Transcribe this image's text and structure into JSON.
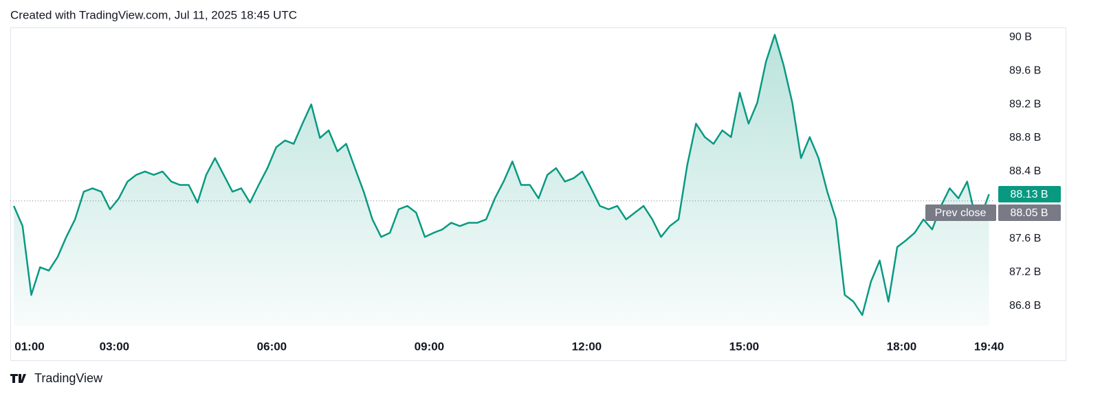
{
  "chart_data": {
    "type": "area",
    "title": "Created with TradingView.com, Jul 11, 2025 18:45 UTC",
    "footer": "TradingView",
    "color": "#089981",
    "x": [
      "01:05",
      "01:15",
      "01:25",
      "01:35",
      "01:45",
      "01:55",
      "02:05",
      "02:15",
      "02:25",
      "02:35",
      "02:45",
      "02:55",
      "03:05",
      "03:15",
      "03:25",
      "03:35",
      "03:45",
      "03:55",
      "04:05",
      "04:15",
      "04:25",
      "04:35",
      "04:45",
      "04:55",
      "05:05",
      "05:15",
      "05:25",
      "05:35",
      "05:45",
      "05:55",
      "06:05",
      "06:15",
      "06:25",
      "06:35",
      "06:45",
      "06:55",
      "07:05",
      "07:15",
      "07:25",
      "07:35",
      "07:45",
      "07:55",
      "08:05",
      "08:15",
      "08:25",
      "08:35",
      "08:45",
      "08:55",
      "09:05",
      "09:15",
      "09:25",
      "09:35",
      "09:45",
      "09:55",
      "10:05",
      "10:15",
      "10:25",
      "10:35",
      "10:45",
      "10:55",
      "11:05",
      "11:15",
      "11:25",
      "11:35",
      "11:45",
      "11:55",
      "12:05",
      "12:15",
      "12:25",
      "12:35",
      "12:45",
      "12:55",
      "13:05",
      "13:15",
      "13:25",
      "13:35",
      "13:45",
      "13:55",
      "14:05",
      "14:15",
      "14:25",
      "14:35",
      "14:45",
      "14:55",
      "15:05",
      "15:15",
      "15:25",
      "15:35",
      "15:45",
      "15:55",
      "16:05",
      "16:15",
      "16:25",
      "16:35",
      "16:45",
      "16:55",
      "17:05",
      "17:15",
      "17:25",
      "17:35",
      "17:45",
      "17:55",
      "18:05",
      "18:15",
      "18:25",
      "18:35",
      "18:45",
      "18:55",
      "19:05",
      "19:15",
      "19:25",
      "19:35",
      "19:40"
    ],
    "values": [
      87.99,
      87.75,
      86.93,
      87.26,
      87.22,
      87.38,
      87.62,
      87.83,
      88.16,
      88.2,
      88.16,
      87.95,
      88.08,
      88.28,
      88.36,
      88.4,
      88.36,
      88.4,
      88.28,
      88.24,
      88.24,
      88.03,
      88.36,
      88.56,
      88.36,
      88.16,
      88.2,
      88.03,
      88.24,
      88.44,
      88.69,
      88.77,
      88.73,
      88.97,
      89.2,
      88.8,
      88.89,
      88.64,
      88.73,
      88.44,
      88.16,
      87.83,
      87.62,
      87.67,
      87.95,
      87.99,
      87.91,
      87.62,
      87.67,
      87.71,
      87.79,
      87.75,
      87.79,
      87.79,
      87.83,
      88.08,
      88.28,
      88.52,
      88.24,
      88.24,
      88.08,
      88.36,
      88.44,
      88.28,
      88.32,
      88.4,
      88.2,
      87.99,
      87.95,
      87.99,
      87.83,
      87.91,
      87.99,
      87.83,
      87.62,
      87.75,
      87.83,
      88.48,
      88.97,
      88.81,
      88.73,
      88.89,
      88.81,
      89.34,
      88.97,
      89.22,
      89.71,
      90.03,
      89.67,
      89.22,
      88.56,
      88.81,
      88.56,
      88.16,
      87.83,
      86.93,
      86.85,
      86.69,
      87.09,
      87.34,
      86.85,
      87.5,
      87.58,
      87.67,
      87.83,
      87.71,
      87.99,
      88.2,
      88.08,
      88.28,
      87.83,
      87.99,
      88.13
    ],
    "xlim": [
      "01:01",
      "19:45"
    ],
    "xticks": [
      "01:00",
      "03:00",
      "06:00",
      "09:00",
      "12:00",
      "15:00",
      "18:00",
      "19:40"
    ],
    "ylim": [
      86.56,
      90.1
    ],
    "yticks": [
      {
        "value": 86.8,
        "label": "86.8 B"
      },
      {
        "value": 87.2,
        "label": "87.2 B"
      },
      {
        "value": 87.6,
        "label": "87.6 B"
      },
      {
        "value": 88.4,
        "label": "88.4 B"
      },
      {
        "value": 88.8,
        "label": "88.8 B"
      },
      {
        "value": 89.2,
        "label": "89.2 B"
      },
      {
        "value": 89.6,
        "label": "89.6 B"
      },
      {
        "value": 90,
        "label": "90 B"
      }
    ],
    "last_price": {
      "value": 88.13,
      "label": "88.13 B"
    },
    "prev_close": {
      "name": "Prev close",
      "value": 88.05,
      "label": "88.05 B",
      "color": "#787b86"
    },
    "grid": false
  }
}
